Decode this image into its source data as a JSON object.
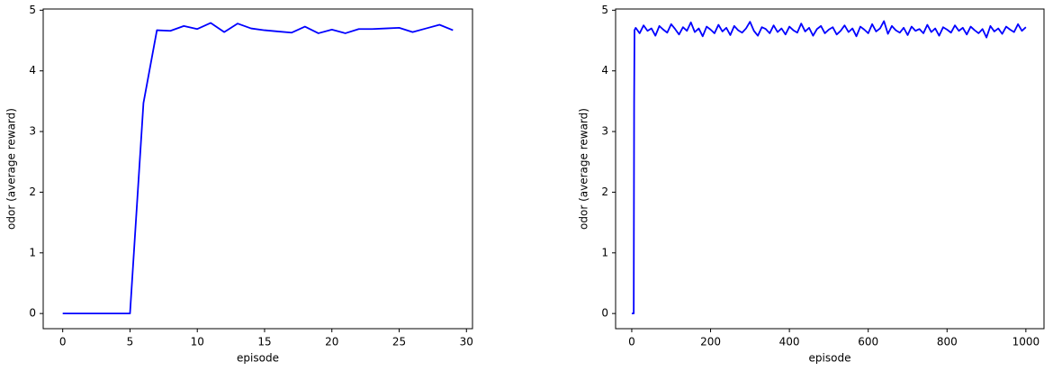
{
  "chart_data": [
    {
      "type": "line",
      "xlabel": "episode",
      "ylabel": "odor (average reward)",
      "x": [
        0,
        1,
        2,
        3,
        4,
        5,
        6,
        7,
        8,
        9,
        10,
        11,
        12,
        13,
        14,
        15,
        16,
        17,
        18,
        19,
        20,
        21,
        22,
        23,
        24,
        25,
        26,
        27,
        28,
        29
      ],
      "series": [
        {
          "color": "#0000ff",
          "values": [
            0,
            0,
            0,
            0,
            0,
            0,
            3.47,
            4.67,
            4.66,
            4.74,
            4.69,
            4.79,
            4.64,
            4.78,
            4.7,
            4.67,
            4.65,
            4.63,
            4.73,
            4.62,
            4.68,
            4.62,
            4.69,
            4.69,
            4.7,
            4.71,
            4.64,
            4.7,
            4.76,
            4.67
          ]
        }
      ],
      "xlim": [
        -1.45,
        30.45
      ],
      "xticks": [
        0,
        5,
        10,
        15,
        20,
        25,
        30
      ],
      "ylim": [
        -0.25,
        5.02
      ],
      "yticks": [
        0,
        1,
        2,
        3,
        4,
        5
      ]
    },
    {
      "type": "line",
      "xlabel": "episode",
      "ylabel": "odor (average reward)",
      "x": [
        0,
        1,
        2,
        3,
        4,
        5,
        6,
        7,
        10,
        20,
        30,
        40,
        50,
        60,
        70,
        80,
        90,
        100,
        110,
        120,
        130,
        140,
        150,
        160,
        170,
        180,
        190,
        200,
        210,
        220,
        230,
        240,
        250,
        260,
        270,
        280,
        290,
        300,
        310,
        320,
        330,
        340,
        350,
        360,
        370,
        380,
        390,
        400,
        410,
        420,
        430,
        440,
        450,
        460,
        470,
        480,
        490,
        500,
        510,
        520,
        530,
        540,
        550,
        560,
        570,
        580,
        590,
        600,
        610,
        620,
        630,
        640,
        650,
        660,
        670,
        680,
        690,
        700,
        710,
        720,
        730,
        740,
        750,
        760,
        770,
        780,
        790,
        800,
        810,
        820,
        830,
        840,
        850,
        860,
        870,
        880,
        890,
        900,
        910,
        920,
        930,
        940,
        950,
        960,
        970,
        980,
        990,
        1000
      ],
      "series": [
        {
          "color": "#0000ff",
          "values": [
            0,
            0,
            0,
            0,
            0,
            0,
            3.47,
            4.67,
            4.71,
            4.62,
            4.75,
            4.66,
            4.7,
            4.58,
            4.74,
            4.68,
            4.63,
            4.77,
            4.69,
            4.6,
            4.72,
            4.66,
            4.8,
            4.64,
            4.7,
            4.57,
            4.73,
            4.68,
            4.62,
            4.76,
            4.65,
            4.71,
            4.59,
            4.74,
            4.67,
            4.63,
            4.7,
            4.81,
            4.66,
            4.58,
            4.72,
            4.69,
            4.62,
            4.75,
            4.64,
            4.7,
            4.6,
            4.73,
            4.67,
            4.63,
            4.78,
            4.65,
            4.71,
            4.58,
            4.69,
            4.74,
            4.62,
            4.68,
            4.72,
            4.6,
            4.66,
            4.75,
            4.64,
            4.7,
            4.57,
            4.73,
            4.68,
            4.62,
            4.77,
            4.65,
            4.7,
            4.82,
            4.61,
            4.74,
            4.67,
            4.63,
            4.71,
            4.59,
            4.73,
            4.66,
            4.69,
            4.62,
            4.76,
            4.64,
            4.7,
            4.58,
            4.72,
            4.68,
            4.63,
            4.75,
            4.66,
            4.71,
            4.6,
            4.73,
            4.67,
            4.62,
            4.69,
            4.55,
            4.74,
            4.65,
            4.7,
            4.61,
            4.73,
            4.68,
            4.64,
            4.77,
            4.66,
            4.72
          ]
        }
      ],
      "xlim": [
        -41,
        1046
      ],
      "xticks": [
        0,
        200,
        400,
        600,
        800,
        1000
      ],
      "ylim": [
        -0.25,
        5.02
      ],
      "yticks": [
        0,
        1,
        2,
        3,
        4,
        5
      ]
    }
  ]
}
